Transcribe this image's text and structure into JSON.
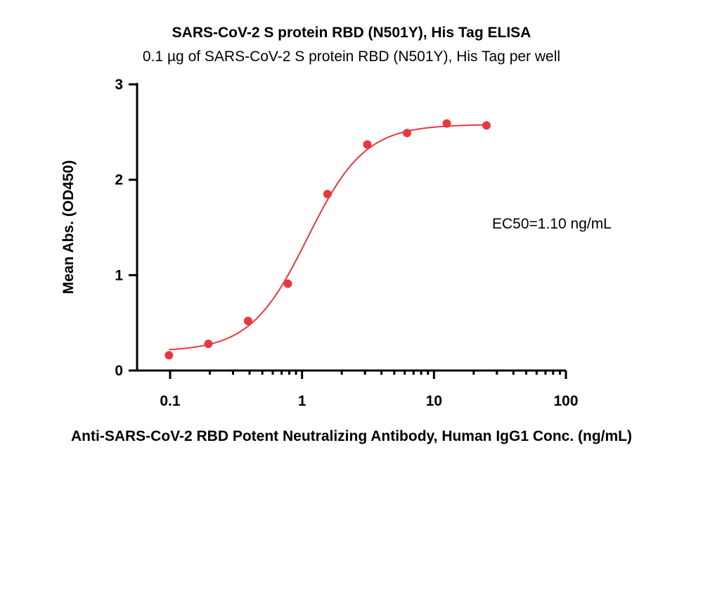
{
  "chart_data": {
    "type": "scatter",
    "title": "SARS-CoV-2 S protein RBD (N501Y), His Tag ELISA",
    "subtitle": "0.1 µg of SARS-CoV-2 S protein RBD (N501Y), His Tag per well",
    "xlabel": "Anti-SARS-CoV-2 RBD Potent Neutralizing Antibody, Human IgG1 Conc. (ng/mL)",
    "ylabel": "Mean Abs. (OD450)",
    "xscale": "log",
    "xlim": [
      0.0562,
      100
    ],
    "ylim": [
      0,
      3
    ],
    "xticks": [
      0.1,
      1,
      10,
      100
    ],
    "xtick_labels": [
      "0.1",
      "1",
      "10",
      "100"
    ],
    "yticks": [
      0,
      1,
      2,
      3
    ],
    "ytick_labels": [
      "0",
      "1",
      "2",
      "3"
    ],
    "grid": false,
    "annotation": "EC50=1.10 ng/mL",
    "series": [
      {
        "color": "#e8383d",
        "x": [
          0.098,
          0.195,
          0.39,
          0.78,
          1.56,
          3.125,
          6.25,
          12.5,
          25
        ],
        "y": [
          0.16,
          0.28,
          0.52,
          0.91,
          1.85,
          2.37,
          2.49,
          2.59,
          2.57
        ]
      }
    ],
    "fit": {
      "model": "4PL",
      "bottom": 0.2,
      "top": 2.58,
      "ec50": 1.1,
      "hill": 2.0,
      "color": "#e8383d"
    }
  }
}
